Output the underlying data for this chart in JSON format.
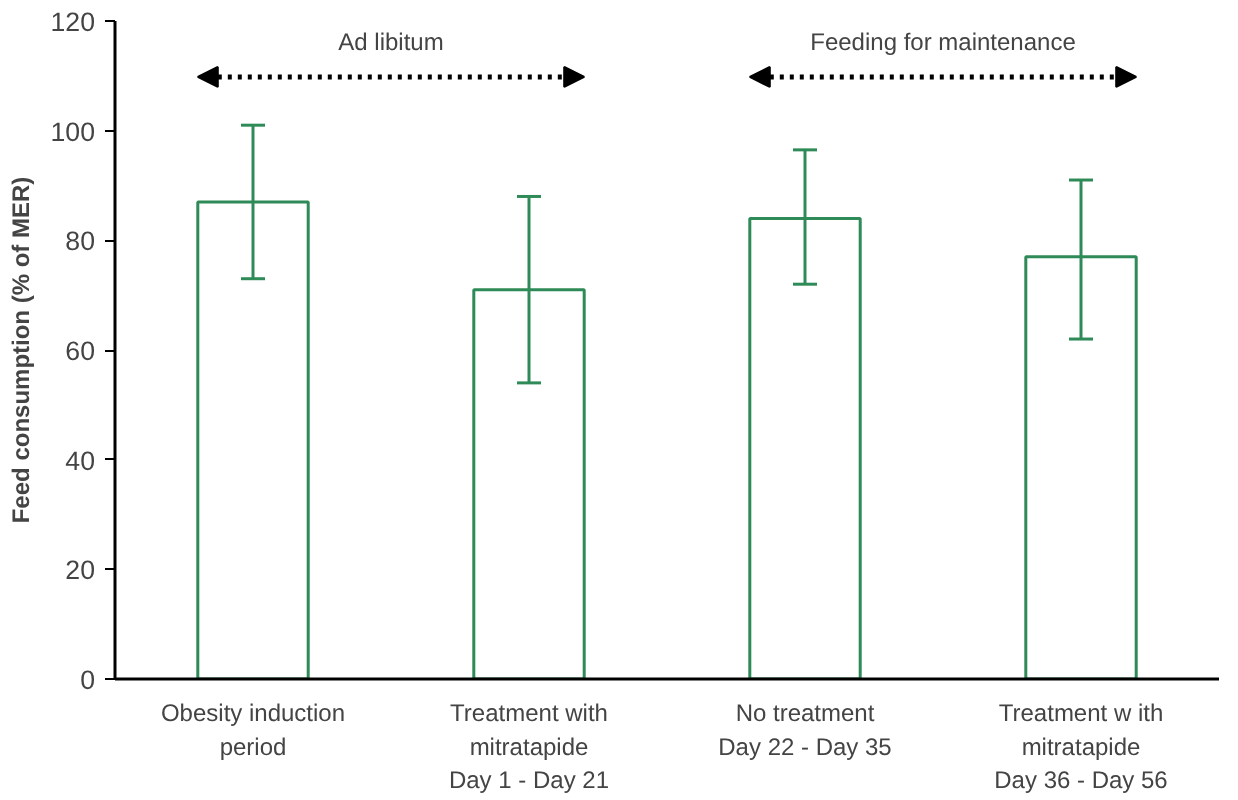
{
  "chart_data": {
    "type": "bar",
    "categories": [
      "Obesity induction\nperiod",
      "Treatment with\nmitratapide\nDay 1 - Day 21",
      "No treatment\nDay 22 - Day 35",
      "Treatment w ith\nmitratapide\nDay 36 - Day 56"
    ],
    "values": [
      87,
      71,
      84,
      77
    ],
    "errors": [
      [
        73,
        101
      ],
      [
        54,
        88
      ],
      [
        72,
        96.5
      ],
      [
        62,
        91
      ]
    ],
    "color": "#2e8b57",
    "ylabel": "Feed consumption (% of MER)",
    "ylim": [
      0,
      120
    ],
    "yticks": [
      0,
      20,
      40,
      60,
      80,
      100,
      120
    ],
    "annotations": [
      "Ad libitum",
      "Feeding for maintenance"
    ],
    "grid": false
  }
}
